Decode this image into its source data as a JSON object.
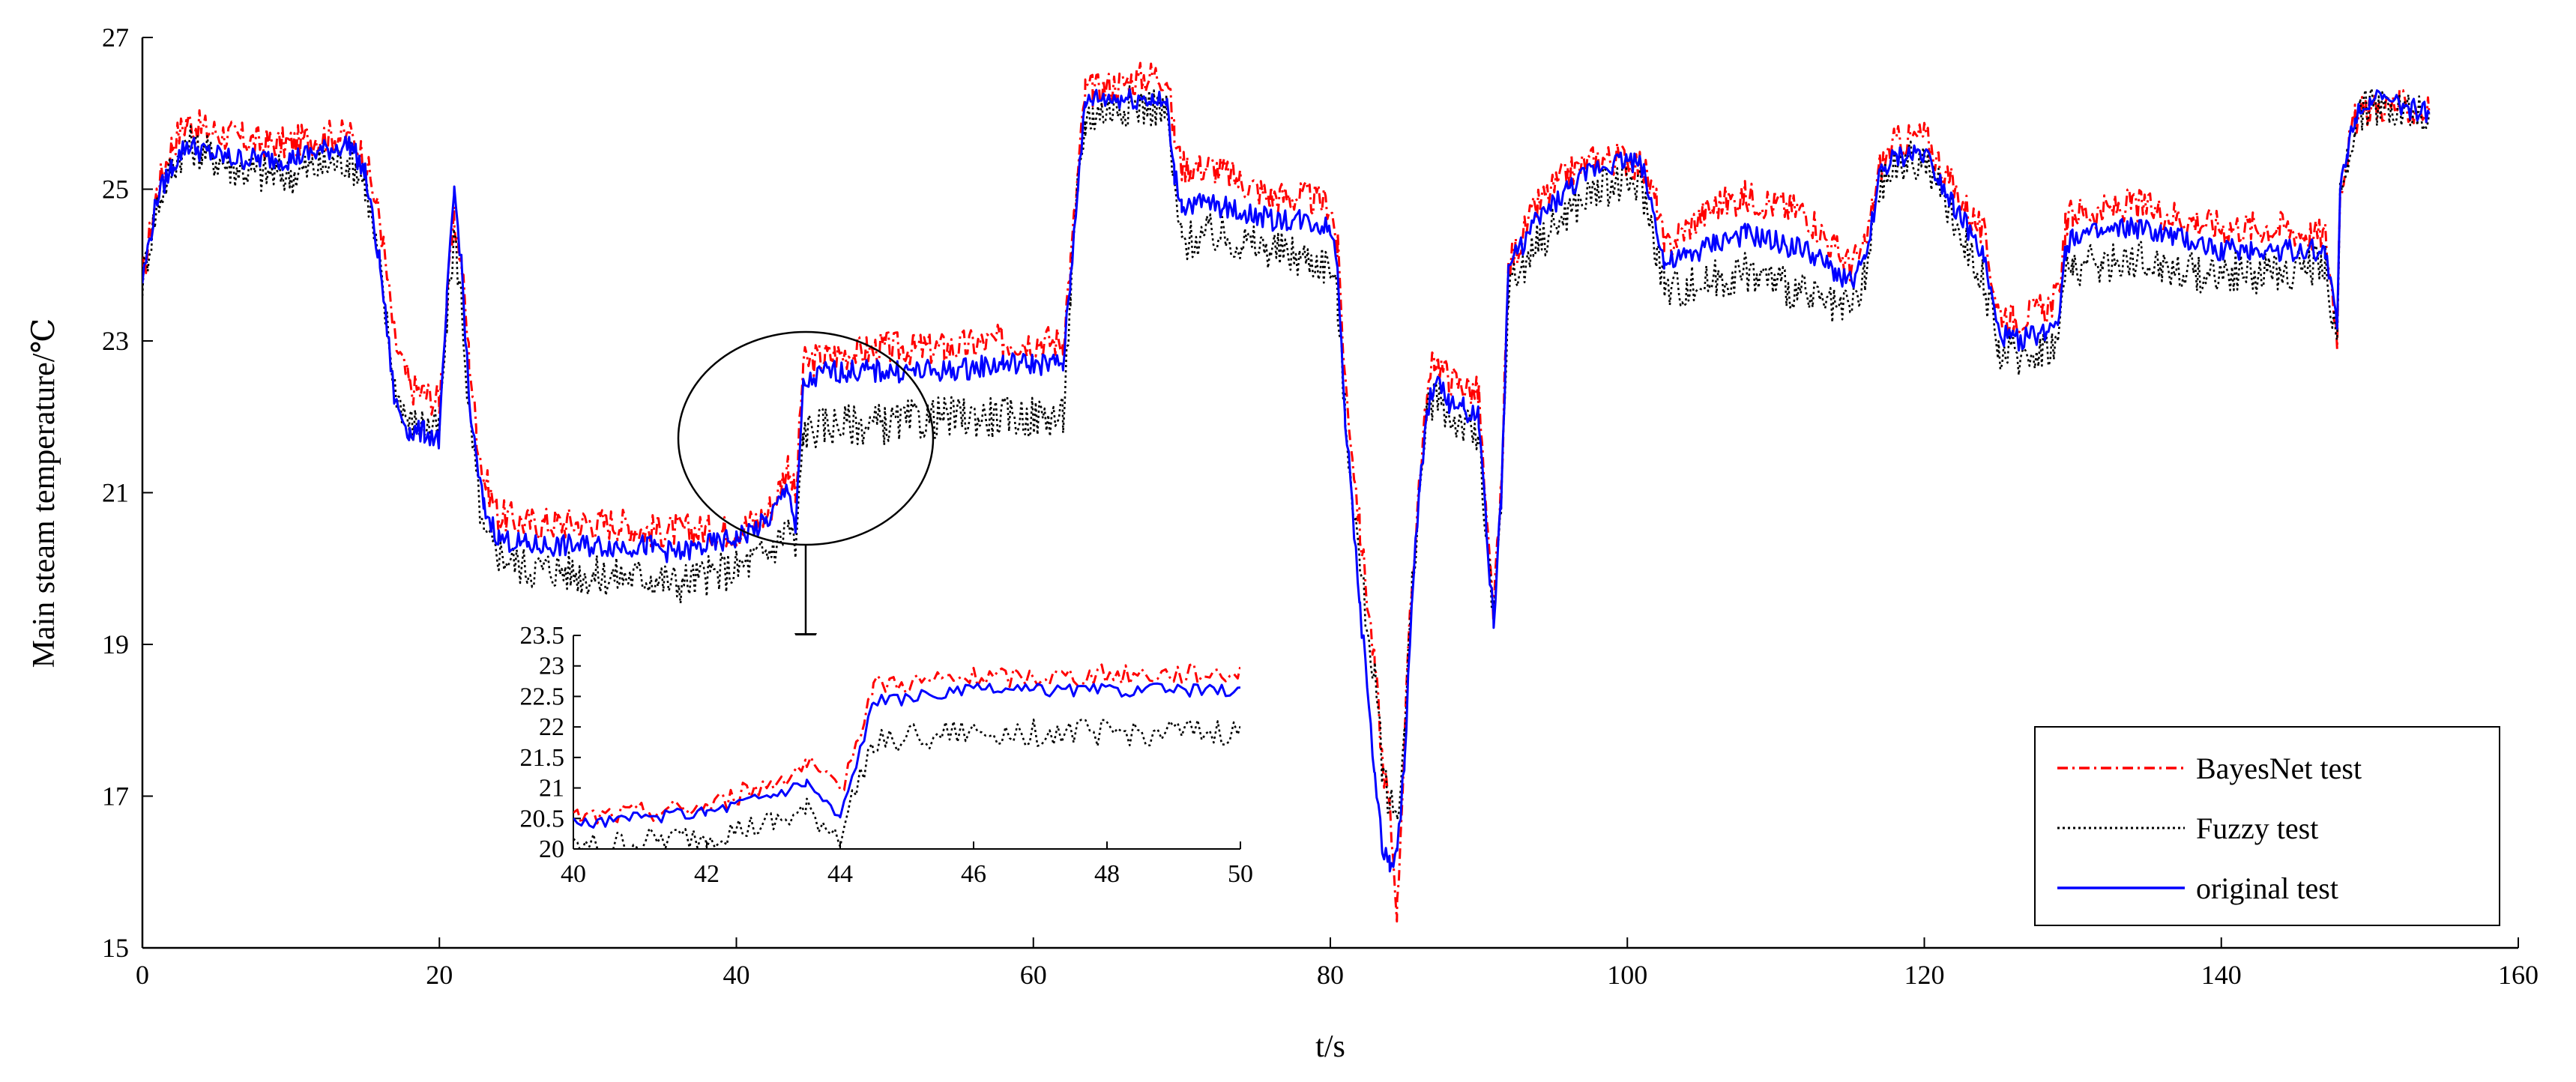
{
  "chart_data": {
    "type": "line",
    "xlabel": "t/s",
    "ylabel": "Main steam temperature/℃",
    "xlim": [
      0,
      160
    ],
    "ylim": [
      15,
      27
    ],
    "xticks": [
      "0",
      "20",
      "40",
      "60",
      "80",
      "100",
      "120",
      "140",
      "160"
    ],
    "yticks": [
      "15",
      "17",
      "19",
      "21",
      "23",
      "25",
      "27"
    ],
    "grid": false,
    "legend_position": "bottom-right",
    "series": [
      {
        "name": "BayesNet test",
        "color": "#ff0000",
        "style": "dash-dot",
        "x": [
          0,
          1,
          2,
          3,
          4,
          6,
          8,
          10,
          12,
          14,
          15,
          16,
          17,
          18,
          19,
          20,
          20.5,
          21,
          21.5,
          22,
          22.5,
          23,
          24,
          26,
          28,
          30,
          32,
          34,
          36,
          38,
          40,
          42,
          43,
          43.5,
          44,
          44.5,
          46,
          50,
          54,
          58,
          62,
          62.5,
          63,
          63.5,
          64,
          66,
          68,
          69,
          69.5,
          70,
          72,
          74,
          76,
          78,
          80,
          80.5,
          81,
          82,
          83,
          83.5,
          84,
          84.5,
          85,
          85.5,
          86,
          86.5,
          87,
          88,
          89,
          90,
          90.5,
          91,
          91.5,
          92,
          94,
          96,
          98,
          100,
          101,
          102,
          102.5,
          104,
          106,
          108,
          110,
          112,
          114,
          115,
          116,
          117,
          118,
          120,
          122,
          124,
          125,
          126,
          128,
          129,
          129.5,
          130,
          132,
          134,
          136,
          138,
          140,
          142,
          144,
          146,
          147,
          147.8,
          148,
          148.5,
          149,
          150,
          152,
          154
        ],
        "values": [
          23.8,
          25.0,
          25.6,
          25.9,
          25.8,
          25.7,
          25.6,
          25.6,
          25.7,
          25.7,
          25.4,
          24.6,
          23.0,
          22.4,
          22.3,
          22.2,
          23.5,
          24.6,
          24.0,
          22.8,
          21.8,
          21.2,
          20.7,
          20.6,
          20.6,
          20.6,
          20.6,
          20.5,
          20.5,
          20.5,
          20.5,
          20.7,
          21.1,
          21.4,
          20.9,
          22.7,
          22.8,
          22.9,
          22.9,
          23.0,
          23.0,
          24.0,
          25.2,
          26.3,
          26.3,
          26.4,
          26.5,
          26.5,
          25.7,
          25.3,
          25.3,
          25.1,
          24.9,
          24.9,
          24.8,
          24.2,
          22.5,
          20.5,
          18.7,
          17.5,
          16.8,
          15.5,
          17.8,
          19.8,
          21.2,
          22.2,
          22.8,
          22.5,
          22.4,
          22.3,
          20.6,
          19.4,
          21.0,
          24.0,
          24.8,
          25.2,
          25.4,
          25.4,
          25.3,
          24.8,
          24.2,
          24.5,
          24.8,
          24.9,
          24.8,
          24.7,
          24.2,
          24.0,
          24.2,
          25.3,
          25.6,
          25.7,
          25.0,
          24.4,
          23.4,
          23.3,
          23.4,
          23.6,
          24.5,
          24.7,
          24.7,
          24.8,
          24.7,
          24.6,
          24.5,
          24.5,
          24.5,
          24.4,
          24.4,
          23.1,
          25.0,
          25.5,
          25.9,
          26.1,
          26.1,
          26.0
        ]
      },
      {
        "name": "Fuzzy test",
        "color": "#000000",
        "style": "dotted",
        "x": [
          0,
          1,
          2,
          3,
          4,
          6,
          8,
          10,
          12,
          14,
          15,
          16,
          17,
          18,
          19,
          20,
          20.5,
          21,
          21.5,
          22,
          22.5,
          23,
          24,
          26,
          28,
          30,
          32,
          34,
          36,
          38,
          40,
          42,
          43,
          43.5,
          44,
          44.5,
          46,
          50,
          54,
          58,
          62,
          62.5,
          63,
          63.5,
          64,
          66,
          68,
          69,
          69.5,
          70,
          72,
          74,
          76,
          78,
          80,
          80.5,
          81,
          82,
          83,
          83.5,
          84,
          84.5,
          85,
          85.5,
          86,
          86.5,
          87,
          88,
          89,
          90,
          90.5,
          91,
          91.5,
          92,
          94,
          96,
          98,
          100,
          101,
          102,
          102.5,
          104,
          106,
          108,
          110,
          112,
          114,
          115,
          116,
          117,
          118,
          120,
          122,
          124,
          125,
          126,
          128,
          129,
          129.5,
          130,
          132,
          134,
          136,
          138,
          140,
          142,
          144,
          146,
          147,
          147.8,
          148,
          148.5,
          149,
          150,
          152,
          154
        ],
        "values": [
          23.8,
          24.8,
          25.3,
          25.6,
          25.5,
          25.3,
          25.2,
          25.2,
          25.3,
          25.4,
          25.1,
          23.9,
          22.4,
          21.9,
          21.9,
          21.8,
          23.3,
          24.4,
          23.5,
          22.0,
          21.2,
          20.4,
          20.2,
          20.0,
          20.0,
          19.9,
          19.9,
          19.9,
          19.8,
          19.9,
          20.0,
          20.2,
          20.4,
          20.6,
          20.2,
          21.8,
          21.9,
          21.9,
          22.0,
          22.0,
          22.0,
          23.6,
          25.0,
          25.9,
          26.0,
          26.1,
          26.1,
          26.0,
          25.0,
          24.3,
          24.4,
          24.3,
          24.2,
          24.1,
          24.0,
          23.5,
          22.0,
          20.0,
          18.5,
          17.4,
          16.9,
          16.8,
          17.8,
          19.7,
          21.0,
          22.0,
          22.3,
          22.0,
          21.9,
          21.7,
          20.4,
          19.3,
          20.8,
          23.7,
          24.3,
          24.7,
          25.0,
          25.1,
          25.0,
          24.2,
          23.7,
          23.7,
          23.8,
          23.9,
          23.8,
          23.6,
          23.4,
          23.4,
          23.8,
          25.0,
          25.3,
          25.4,
          24.6,
          23.8,
          22.9,
          22.8,
          22.9,
          23.0,
          23.9,
          24.0,
          24.0,
          24.1,
          24.0,
          23.9,
          23.9,
          23.9,
          23.9,
          24.0,
          24.0,
          22.9,
          24.9,
          25.4,
          25.9,
          26.1,
          26.1,
          26.0
        ]
      },
      {
        "name": "original test",
        "color": "#0000ff",
        "style": "solid",
        "x": [
          0,
          1,
          2,
          3,
          4,
          6,
          8,
          10,
          12,
          14,
          15,
          16,
          17,
          18,
          19,
          20,
          20.5,
          21,
          21.5,
          22,
          22.5,
          23,
          24,
          26,
          28,
          30,
          32,
          34,
          36,
          38,
          40,
          42,
          43,
          43.5,
          44,
          44.5,
          46,
          50,
          54,
          58,
          62,
          62.5,
          63,
          63.5,
          64,
          66,
          68,
          69,
          69.5,
          70,
          72,
          74,
          76,
          78,
          80,
          80.5,
          81,
          82,
          83,
          83.5,
          84,
          84.5,
          85,
          85.5,
          86,
          86.5,
          87,
          88,
          89,
          90,
          90.5,
          91,
          91.5,
          92,
          94,
          96,
          98,
          100,
          101,
          102,
          102.5,
          104,
          106,
          108,
          110,
          112,
          114,
          115,
          116,
          117,
          118,
          120,
          122,
          124,
          125,
          126,
          128,
          129,
          129.5,
          130,
          132,
          134,
          136,
          138,
          140,
          142,
          144,
          146,
          147,
          147.8,
          148,
          148.5,
          149,
          150,
          152,
          154
        ],
        "values": [
          23.8,
          24.9,
          25.3,
          25.6,
          25.5,
          25.4,
          25.4,
          25.4,
          25.5,
          25.6,
          25.2,
          24.0,
          22.2,
          21.8,
          21.8,
          21.7,
          23.5,
          25.0,
          24.0,
          22.2,
          21.4,
          20.8,
          20.4,
          20.3,
          20.3,
          20.3,
          20.3,
          20.3,
          20.2,
          20.3,
          20.4,
          20.6,
          20.9,
          21.1,
          20.5,
          22.4,
          22.6,
          22.6,
          22.6,
          22.7,
          22.7,
          23.8,
          25.1,
          26.1,
          26.2,
          26.2,
          26.2,
          26.1,
          25.2,
          24.8,
          24.8,
          24.7,
          24.6,
          24.6,
          24.5,
          24.0,
          22.0,
          19.5,
          17.3,
          16.3,
          16.1,
          16.2,
          17.5,
          19.6,
          21.0,
          22.0,
          22.5,
          22.2,
          22.1,
          22.0,
          20.5,
          19.3,
          20.9,
          24.0,
          24.6,
          25.0,
          25.3,
          25.4,
          25.3,
          24.5,
          24.0,
          24.1,
          24.3,
          24.4,
          24.3,
          24.2,
          23.9,
          23.8,
          24.0,
          25.2,
          25.4,
          25.5,
          24.8,
          24.1,
          23.1,
          23.0,
          23.1,
          23.3,
          24.2,
          24.4,
          24.4,
          24.5,
          24.4,
          24.3,
          24.2,
          24.2,
          24.2,
          24.2,
          24.2,
          23.2,
          25.0,
          25.5,
          26.0,
          26.2,
          26.1,
          26.0
        ]
      }
    ],
    "inset": {
      "xlim": [
        40,
        50
      ],
      "ylim": [
        20,
        23.5
      ],
      "xticks": [
        "40",
        "42",
        "44",
        "46",
        "48",
        "50"
      ],
      "yticks": [
        "20",
        "20.5",
        "21",
        "21.5",
        "22",
        "22.5",
        "23",
        "23.5"
      ]
    }
  }
}
